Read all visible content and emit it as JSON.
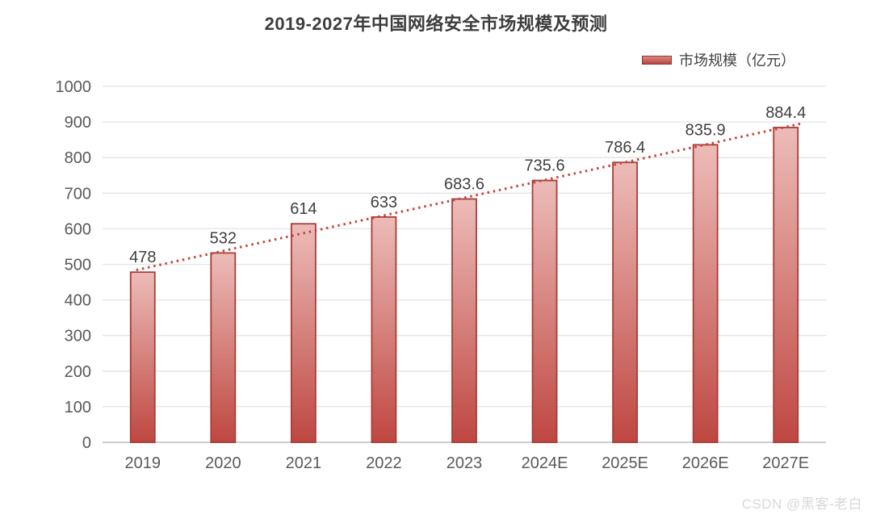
{
  "page": {
    "watermark": "CSDN @黑客-老白"
  },
  "legend": {
    "label": "市场规模（亿元）"
  },
  "colors": {
    "title": "#3d3d3d",
    "tick_label": "#595959",
    "value_label": "#3f3f3f",
    "gridline": "#e3e3e3",
    "baseline": "#cdcdcd",
    "bar_fill_top": "#edbcb8",
    "bar_fill_bottom": "#bf4741",
    "bar_border": "#a63d37",
    "legend_swatch_top": "#d98a84",
    "legend_swatch_bottom": "#b8463f",
    "legend_swatch_border": "#96352e",
    "trendline": "#c5453d",
    "watermark": "#d8d8d8"
  },
  "chart_data": {
    "type": "bar",
    "title": "2019-2027年中国网络安全市场规模及预测",
    "series_name": "市场规模（亿元）",
    "categories": [
      "2019",
      "2020",
      "2021",
      "2022",
      "2023",
      "2024E",
      "2025E",
      "2026E",
      "2027E"
    ],
    "values": [
      478,
      532,
      614,
      633,
      683.6,
      735.6,
      786.4,
      835.9,
      884.4
    ],
    "value_labels": [
      "478",
      "532",
      "614",
      "633",
      "683.6",
      "735.6",
      "786.4",
      "835.9",
      "884.4"
    ],
    "xlabel": "",
    "ylabel": "",
    "ylim": [
      0,
      1000
    ],
    "ytick_step": 100,
    "grid": true,
    "legend_position": "top-right",
    "trendline": "linear-dotted"
  }
}
